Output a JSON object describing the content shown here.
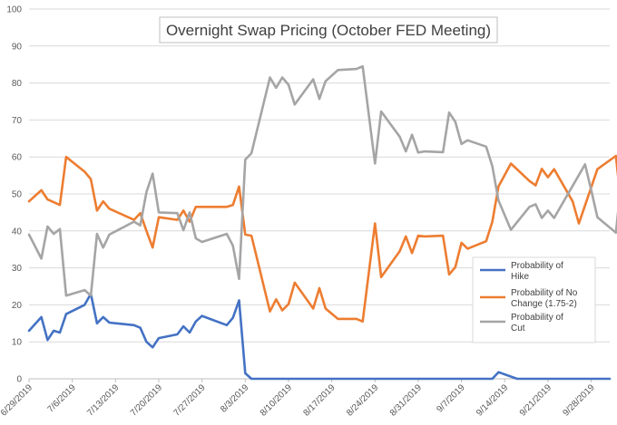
{
  "chart_data": {
    "type": "line",
    "title": "Overnight Swap Pricing (October FED Meeting)",
    "xlabel": "",
    "ylabel": "",
    "ylim": [
      0,
      100
    ],
    "y_ticks": [
      0,
      10,
      20,
      30,
      40,
      50,
      60,
      70,
      80,
      90,
      100
    ],
    "x_range": [
      "2019-06-29",
      "2019-10-01"
    ],
    "x_tick_labels": [
      "6/29/2019",
      "7/6/2019",
      "7/13/2019",
      "7/20/2019",
      "7/27/2019",
      "8/3/2019",
      "8/10/2019",
      "8/17/2019",
      "8/24/2019",
      "8/31/2019",
      "9/7/2019",
      "9/14/2019",
      "9/21/2019",
      "9/28/2019"
    ],
    "x_tick_dates": [
      "2019-06-29",
      "2019-07-06",
      "2019-07-13",
      "2019-07-20",
      "2019-07-27",
      "2019-08-03",
      "2019-08-10",
      "2019-08-17",
      "2019-08-24",
      "2019-08-31",
      "2019-09-07",
      "2019-09-14",
      "2019-09-21",
      "2019-09-28"
    ],
    "grid": true,
    "legend": {
      "position": "bottom-right"
    },
    "series": [
      {
        "name": "Probability of Hike",
        "color": "#4472C4",
        "points": [
          [
            "2019-06-29",
            13
          ],
          [
            "2019-07-01",
            16.7
          ],
          [
            "2019-07-02",
            10.5
          ],
          [
            "2019-07-03",
            13
          ],
          [
            "2019-07-04",
            12.5
          ],
          [
            "2019-07-05",
            17.5
          ],
          [
            "2019-07-08",
            20
          ],
          [
            "2019-07-09",
            23
          ],
          [
            "2019-07-10",
            15
          ],
          [
            "2019-07-11",
            16.7
          ],
          [
            "2019-07-12",
            15.2
          ],
          [
            "2019-07-16",
            14.5
          ],
          [
            "2019-07-17",
            13.8
          ],
          [
            "2019-07-18",
            10
          ],
          [
            "2019-07-19",
            8.5
          ],
          [
            "2019-07-20",
            11
          ],
          [
            "2019-07-23",
            12
          ],
          [
            "2019-07-24",
            14.2
          ],
          [
            "2019-07-25",
            12.5
          ],
          [
            "2019-07-26",
            15.5
          ],
          [
            "2019-07-27",
            17
          ],
          [
            "2019-07-31",
            14.5
          ],
          [
            "2019-08-01",
            16.5
          ],
          [
            "2019-08-02",
            21.2
          ],
          [
            "2019-08-03",
            1.5
          ],
          [
            "2019-08-04",
            0
          ],
          [
            "2019-09-12",
            0
          ],
          [
            "2019-09-13",
            1.8
          ],
          [
            "2019-09-16",
            0
          ],
          [
            "2019-10-01",
            0
          ]
        ]
      },
      {
        "name": "Probability of No Change (1.75-2)",
        "color": "#ED7D31",
        "points": [
          [
            "2019-06-29",
            48
          ],
          [
            "2019-07-01",
            51
          ],
          [
            "2019-07-02",
            48.5
          ],
          [
            "2019-07-04",
            47
          ],
          [
            "2019-07-05",
            60
          ],
          [
            "2019-07-08",
            56
          ],
          [
            "2019-07-09",
            54
          ],
          [
            "2019-07-10",
            45.5
          ],
          [
            "2019-07-11",
            48
          ],
          [
            "2019-07-12",
            46
          ],
          [
            "2019-07-16",
            43
          ],
          [
            "2019-07-17",
            44.8
          ],
          [
            "2019-07-18",
            40
          ],
          [
            "2019-07-19",
            35.5
          ],
          [
            "2019-07-20",
            43.7
          ],
          [
            "2019-07-23",
            43
          ],
          [
            "2019-07-24",
            45.5
          ],
          [
            "2019-07-25",
            42.5
          ],
          [
            "2019-07-26",
            46.5
          ],
          [
            "2019-07-31",
            46.5
          ],
          [
            "2019-08-01",
            47
          ],
          [
            "2019-08-02",
            52
          ],
          [
            "2019-08-03",
            39
          ],
          [
            "2019-08-04",
            38.7
          ],
          [
            "2019-08-07",
            18.2
          ],
          [
            "2019-08-08",
            21.5
          ],
          [
            "2019-08-09",
            18.5
          ],
          [
            "2019-08-10",
            20.2
          ],
          [
            "2019-08-11",
            26
          ],
          [
            "2019-08-14",
            19
          ],
          [
            "2019-08-15",
            24.5
          ],
          [
            "2019-08-16",
            19
          ],
          [
            "2019-08-18",
            16.2
          ],
          [
            "2019-08-21",
            16.2
          ],
          [
            "2019-08-22",
            15.5
          ],
          [
            "2019-08-24",
            42
          ],
          [
            "2019-08-25",
            27.5
          ],
          [
            "2019-08-28",
            34.5
          ],
          [
            "2019-08-29",
            38.5
          ],
          [
            "2019-08-30",
            34
          ],
          [
            "2019-08-31",
            38.7
          ],
          [
            "2019-09-01",
            38.5
          ],
          [
            "2019-09-04",
            38.7
          ],
          [
            "2019-09-05",
            28.2
          ],
          [
            "2019-09-06",
            30.2
          ],
          [
            "2019-09-07",
            36.8
          ],
          [
            "2019-09-08",
            35.2
          ],
          [
            "2019-09-11",
            37.2
          ],
          [
            "2019-09-12",
            42.5
          ],
          [
            "2019-09-13",
            52
          ],
          [
            "2019-09-15",
            58.2
          ],
          [
            "2019-09-18",
            53.5
          ],
          [
            "2019-09-19",
            52.3
          ],
          [
            "2019-09-20",
            56.8
          ],
          [
            "2019-09-21",
            54.5
          ],
          [
            "2019-09-22",
            56.7
          ],
          [
            "2019-09-25",
            48
          ],
          [
            "2019-09-26",
            42
          ],
          [
            "2019-09-29",
            56.7
          ],
          [
            "2019-10-02",
            60.3
          ],
          [
            "2019-10-03",
            44.5
          ]
        ]
      },
      {
        "name": "Probability of Cut",
        "color": "#A5A5A5",
        "points": [
          [
            "2019-06-29",
            39
          ],
          [
            "2019-07-01",
            32.5
          ],
          [
            "2019-07-02",
            41.2
          ],
          [
            "2019-07-03",
            39.2
          ],
          [
            "2019-07-04",
            40.5
          ],
          [
            "2019-07-05",
            22.5
          ],
          [
            "2019-07-08",
            24
          ],
          [
            "2019-07-09",
            22.5
          ],
          [
            "2019-07-10",
            39.2
          ],
          [
            "2019-07-11",
            35.5
          ],
          [
            "2019-07-12",
            39
          ],
          [
            "2019-07-16",
            42.5
          ],
          [
            "2019-07-17",
            41.5
          ],
          [
            "2019-07-18",
            50.5
          ],
          [
            "2019-07-19",
            55.5
          ],
          [
            "2019-07-20",
            45
          ],
          [
            "2019-07-23",
            44.8
          ],
          [
            "2019-07-24",
            40.2
          ],
          [
            "2019-07-25",
            45
          ],
          [
            "2019-07-26",
            38
          ],
          [
            "2019-07-27",
            37
          ],
          [
            "2019-07-31",
            39.2
          ],
          [
            "2019-08-01",
            36
          ],
          [
            "2019-08-02",
            27
          ],
          [
            "2019-08-03",
            59.3
          ],
          [
            "2019-08-04",
            61
          ],
          [
            "2019-08-07",
            81.5
          ],
          [
            "2019-08-08",
            78.7
          ],
          [
            "2019-08-09",
            81.5
          ],
          [
            "2019-08-10",
            79.5
          ],
          [
            "2019-08-11",
            74.2
          ],
          [
            "2019-08-14",
            81
          ],
          [
            "2019-08-15",
            75.7
          ],
          [
            "2019-08-16",
            80.5
          ],
          [
            "2019-08-18",
            83.5
          ],
          [
            "2019-08-21",
            83.8
          ],
          [
            "2019-08-22",
            84.5
          ],
          [
            "2019-08-24",
            58.2
          ],
          [
            "2019-08-25",
            72.3
          ],
          [
            "2019-08-28",
            65.5
          ],
          [
            "2019-08-29",
            61.5
          ],
          [
            "2019-08-30",
            66
          ],
          [
            "2019-08-31",
            61.2
          ],
          [
            "2019-09-01",
            61.5
          ],
          [
            "2019-09-04",
            61.3
          ],
          [
            "2019-09-05",
            72
          ],
          [
            "2019-09-06",
            69.5
          ],
          [
            "2019-09-07",
            63.5
          ],
          [
            "2019-09-08",
            64.5
          ],
          [
            "2019-09-11",
            62.8
          ],
          [
            "2019-09-12",
            57.5
          ],
          [
            "2019-09-13",
            48.2
          ],
          [
            "2019-09-15",
            40.3
          ],
          [
            "2019-09-18",
            46.5
          ],
          [
            "2019-09-19",
            47.2
          ],
          [
            "2019-09-20",
            43.5
          ],
          [
            "2019-09-21",
            45.5
          ],
          [
            "2019-09-22",
            43.5
          ],
          [
            "2019-09-27",
            58
          ],
          [
            "2019-09-28",
            51
          ],
          [
            "2019-09-29",
            43.7
          ],
          [
            "2019-10-02",
            39.5
          ],
          [
            "2019-10-03",
            55.5
          ]
        ]
      }
    ]
  }
}
